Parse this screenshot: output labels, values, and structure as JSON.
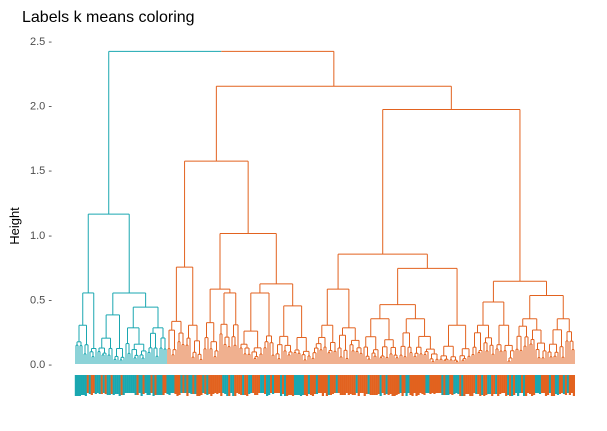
{
  "chart_data": {
    "type": "dendrogram",
    "title": "Labels k means coloring",
    "xlabel": "",
    "ylabel": "Height",
    "ylim": [
      0,
      2.55
    ],
    "y_ticks": [
      0.0,
      0.5,
      1.0,
      1.5,
      2.0,
      2.5
    ],
    "y_tick_labels": [
      "0.0 -",
      "0.5 -",
      "1.0 -",
      "1.5 -",
      "2.0 -",
      "2.5 -"
    ],
    "grid": false,
    "legend": "none",
    "colors": {
      "cluster_teal": "#1aa7b0",
      "cluster_orange": "#e2621f"
    },
    "n_leaves": 250,
    "clusters": [
      {
        "color": "cluster_teal",
        "leaf_count": 46
      },
      {
        "color": "cluster_orange",
        "leaf_count": 204
      }
    ],
    "merges": [
      {
        "height": 2.42,
        "left": "teal",
        "right": "orange"
      },
      {
        "height": 2.15,
        "cluster": "orange",
        "desc": "split of orange group"
      },
      {
        "height": 1.97,
        "cluster": "orange",
        "desc": "right orange subgroup"
      },
      {
        "height": 1.57,
        "cluster": "orange",
        "desc": "left orange subgroup"
      },
      {
        "height": 1.16,
        "cluster": "teal",
        "desc": "teal group root"
      },
      {
        "height": 1.01,
        "cluster": "orange"
      },
      {
        "height": 0.93,
        "cluster": "orange"
      },
      {
        "height": 0.85,
        "cluster": "orange"
      },
      {
        "height": 0.75,
        "cluster": "orange"
      },
      {
        "height": 0.74,
        "cluster": "orange"
      },
      {
        "height": 0.64,
        "cluster": "orange"
      },
      {
        "height": 0.55,
        "cluster": "teal"
      },
      {
        "height": 0.55,
        "cluster": "teal"
      },
      {
        "height": 0.53,
        "cluster": "orange"
      },
      {
        "height": 0.46,
        "cluster": "orange"
      },
      {
        "height": 0.38,
        "cluster": "orange"
      }
    ]
  }
}
